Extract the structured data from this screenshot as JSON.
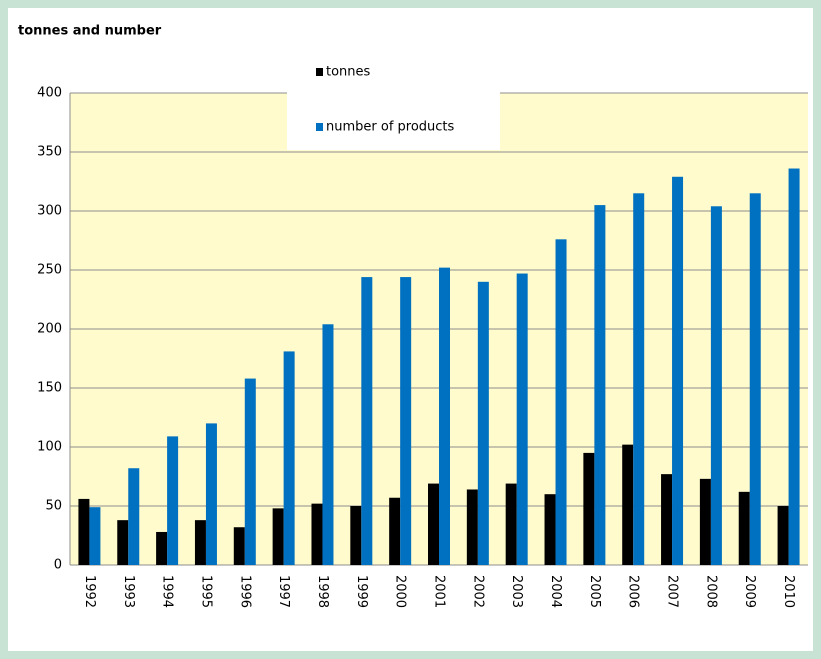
{
  "chart_data": {
    "type": "bar",
    "title": "tonnes and number",
    "categories": [
      "1992",
      "1993",
      "1994",
      "1995",
      "1996",
      "1997",
      "1998",
      "1999",
      "2000",
      "2001",
      "2002",
      "2003",
      "2004",
      "2005",
      "2006",
      "2007",
      "2008",
      "2009",
      "2010"
    ],
    "series": [
      {
        "name": "tonnes",
        "color": "#000000",
        "values": [
          56,
          38,
          28,
          38,
          32,
          48,
          52,
          50,
          57,
          69,
          64,
          69,
          60,
          95,
          102,
          77,
          73,
          62,
          50
        ]
      },
      {
        "name": "number of products",
        "color": "#0070c0",
        "values": [
          49,
          82,
          109,
          120,
          158,
          181,
          204,
          244,
          244,
          252,
          240,
          247,
          276,
          305,
          315,
          329,
          304,
          315,
          336
        ]
      }
    ],
    "ylim": [
      0,
      400
    ],
    "yticks": [
      0,
      50,
      100,
      150,
      200,
      250,
      300,
      350,
      400
    ],
    "grid": true,
    "legend": "top"
  }
}
